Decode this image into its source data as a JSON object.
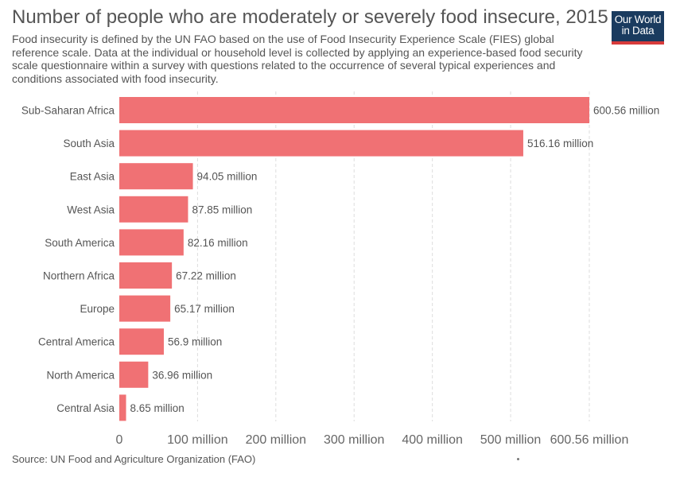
{
  "title": "Number of people who are moderately or severely food insecure, 2015",
  "subtitle": "Food insecurity is defined by the UN FAO based on the use of Food Insecurity Experience Scale (FIES) global reference scale. Data at the individual or household level is collected by applying an experience-based food security scale questionnaire within a survey with questions related to the occurrence of several typical experiences and conditions associated with food insecurity.",
  "logo": {
    "line1": "Our World",
    "line2": "in Data"
  },
  "source": "Source: UN Food and Agriculture Organization (FAO)",
  "colors": {
    "bar": "#f07174",
    "grid": "#dddddd",
    "logo_bg": "#1a3b5f",
    "logo_accent": "#d73b3b"
  },
  "chart_data": {
    "type": "bar",
    "orientation": "horizontal",
    "categories": [
      "Sub-Saharan Africa",
      "South Asia",
      "East Asia",
      "West Asia",
      "South America",
      "Northern Africa",
      "Europe",
      "Central America",
      "North America",
      "Central Asia"
    ],
    "values": [
      600.56,
      516.16,
      94.05,
      87.85,
      82.16,
      67.22,
      65.17,
      56.9,
      36.96,
      8.65
    ],
    "data_labels": [
      "600.56 million",
      "516.16 million",
      "94.05 million",
      "87.85 million",
      "82.16 million",
      "67.22 million",
      "65.17 million",
      "56.9 million",
      "36.96 million",
      "8.65 million"
    ],
    "x_ticks": [
      0,
      100,
      200,
      300,
      400,
      500,
      600.56
    ],
    "x_tick_labels": [
      "0",
      "100 million",
      "200 million",
      "300 million",
      "400 million",
      "500 million",
      "600.56 million"
    ],
    "xlim": [
      0,
      600.56
    ],
    "grid": true
  }
}
